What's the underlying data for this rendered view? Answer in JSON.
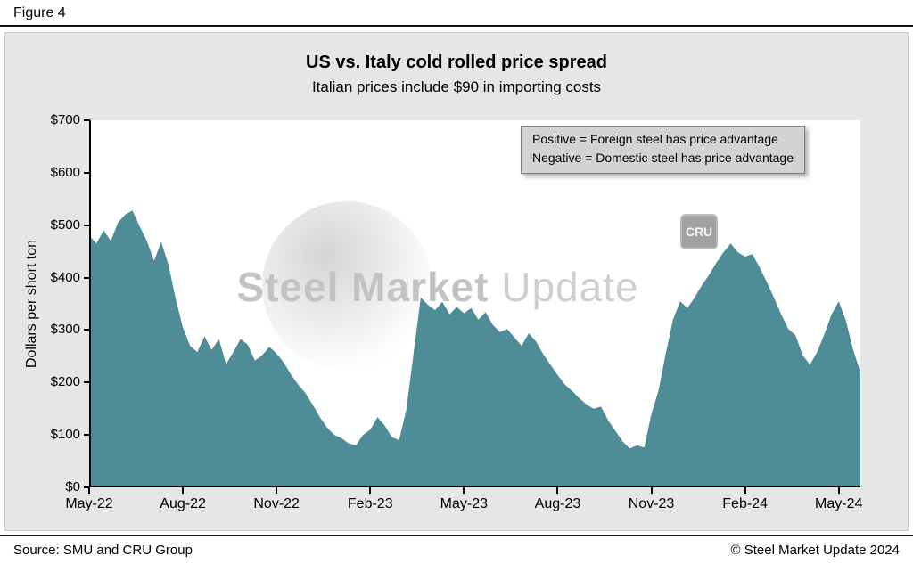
{
  "figure_label": "Figure 4",
  "watermark": {
    "text1": "Steel Market",
    "text2": "Update",
    "cru": "CRU"
  },
  "footer": {
    "source": "Source: SMU and CRU Group",
    "copyright": "© Steel Market Update 2024"
  },
  "colors": {
    "area": "#4e8c97",
    "panel_bg": "#e6e6e6",
    "legend_bg": "#d3d3d3",
    "axis": "#000000"
  },
  "chart_data": {
    "type": "area",
    "title": "US vs. Italy cold rolled price spread",
    "subtitle": "Italian prices include $90 in importing costs",
    "xlabel": "",
    "ylabel": "Dollars per short ton",
    "ylim": [
      0,
      700
    ],
    "y_tick_step": 100,
    "y_tick_labels": [
      "$0",
      "$100",
      "$200",
      "$300",
      "$400",
      "$500",
      "$600",
      "$700"
    ],
    "categories": [
      "May-22",
      "Aug-22",
      "Nov-22",
      "Feb-23",
      "May-23",
      "Aug-23",
      "Nov-23",
      "Feb-24",
      "May-24"
    ],
    "tick_indices": [
      0,
      13,
      26,
      39,
      52,
      65,
      78,
      91,
      104
    ],
    "x_unit": "week",
    "x_max_index": 107,
    "grid": false,
    "legend_position": "top-right",
    "annotations": {
      "line1": "Positive = Foreign steel has price advantage",
      "line2": "Negative = Domestic steel has price advantage"
    },
    "values": [
      480,
      465,
      490,
      470,
      505,
      520,
      528,
      498,
      470,
      432,
      468,
      425,
      360,
      305,
      270,
      258,
      288,
      262,
      283,
      235,
      258,
      283,
      272,
      242,
      252,
      268,
      255,
      238,
      215,
      196,
      180,
      158,
      134,
      114,
      100,
      94,
      84,
      80,
      100,
      110,
      134,
      118,
      96,
      90,
      148,
      255,
      362,
      348,
      338,
      354,
      330,
      344,
      332,
      342,
      320,
      334,
      310,
      296,
      302,
      286,
      270,
      294,
      278,
      254,
      234,
      214,
      196,
      184,
      170,
      158,
      150,
      154,
      128,
      108,
      88,
      74,
      80,
      76,
      140,
      185,
      255,
      320,
      355,
      342,
      362,
      385,
      405,
      428,
      448,
      465,
      448,
      440,
      445,
      420,
      392,
      362,
      330,
      302,
      290,
      252,
      234,
      258,
      292,
      330,
      355,
      318,
      262,
      220
    ]
  }
}
